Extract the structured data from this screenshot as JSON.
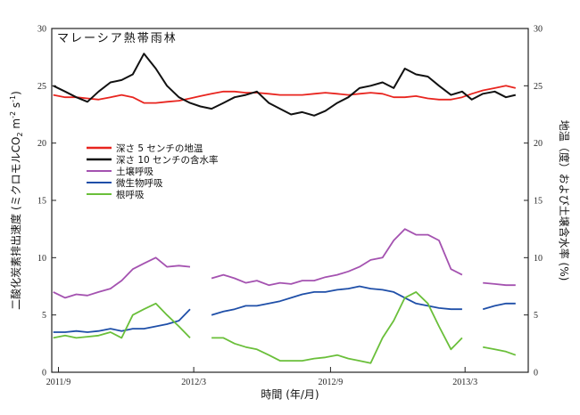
{
  "chart_data": {
    "type": "line",
    "title": "マレーシア熱帯雨林",
    "xlabel": "時間 (年/月)",
    "ylabel_parts": [
      "二酸化炭素排出速度 (ミクロモルCO",
      "2",
      " m",
      "-2",
      " s",
      "-1",
      ")"
    ],
    "y2label": "地温（度）および土壌含水率 (%)",
    "xlim": [
      "2011-08-23",
      "2013-05-25"
    ],
    "ylim": [
      0,
      30
    ],
    "y2lim": [
      0,
      30
    ],
    "yticks": [
      0,
      5,
      10,
      15,
      20,
      25,
      30
    ],
    "y2ticks": [
      0,
      5,
      10,
      15,
      20,
      25,
      30
    ],
    "xticks": [
      {
        "date": "2011-09-01",
        "label": "2011/9"
      },
      {
        "date": "2012-03-01",
        "label": "2012/3"
      },
      {
        "date": "2012-09-01",
        "label": "2012/9"
      },
      {
        "date": "2013-03-01",
        "label": "2013/3"
      }
    ],
    "grid": false,
    "legend_position": "center-left",
    "x": [
      "2011-08-25",
      "2011-09-10",
      "2011-09-25",
      "2011-10-10",
      "2011-10-25",
      "2011-11-10",
      "2011-11-25",
      "2011-12-10",
      "2011-12-25",
      "2012-01-10",
      "2012-01-25",
      "2012-02-10",
      "2012-02-25",
      "2012-03-10",
      "2012-03-25",
      "2012-04-10",
      "2012-04-25",
      "2012-05-10",
      "2012-05-25",
      "2012-06-10",
      "2012-06-25",
      "2012-07-10",
      "2012-07-25",
      "2012-08-10",
      "2012-08-25",
      "2012-09-10",
      "2012-09-25",
      "2012-10-10",
      "2012-10-25",
      "2012-11-10",
      "2012-11-25",
      "2012-12-10",
      "2012-12-25",
      "2013-01-10",
      "2013-01-25",
      "2013-02-10",
      "2013-02-25",
      "2013-03-10",
      "2013-03-25",
      "2013-04-10",
      "2013-04-25",
      "2013-05-08"
    ],
    "series": [
      {
        "name": "深さ 5 センチの地温",
        "axis": "right",
        "color": "#e8251f",
        "values": [
          24.2,
          24.0,
          24.0,
          23.9,
          23.8,
          24.0,
          24.2,
          24.0,
          23.5,
          23.5,
          23.6,
          23.7,
          23.9,
          24.1,
          24.3,
          24.5,
          24.5,
          24.4,
          24.4,
          24.3,
          24.2,
          24.2,
          24.2,
          24.3,
          24.4,
          24.3,
          24.2,
          24.3,
          24.4,
          24.3,
          24.0,
          24.0,
          24.1,
          23.9,
          23.8,
          23.8,
          24.0,
          24.3,
          24.6,
          24.8,
          25.0,
          24.8
        ]
      },
      {
        "name": "深さ 10 センチの含水率",
        "axis": "right",
        "color": "#111111",
        "values": [
          25.0,
          24.5,
          24.0,
          23.6,
          24.5,
          25.3,
          25.5,
          26.0,
          27.8,
          26.5,
          25.0,
          24.0,
          23.5,
          23.2,
          23.0,
          23.5,
          24.0,
          24.2,
          24.5,
          23.5,
          23.0,
          22.5,
          22.7,
          22.4,
          22.8,
          23.5,
          24.0,
          24.8,
          25.0,
          25.3,
          24.8,
          26.5,
          26.0,
          25.8,
          25.0,
          24.2,
          24.5,
          23.8,
          24.3,
          24.5,
          24.0,
          24.2
        ]
      },
      {
        "name": "土壌呼吸",
        "axis": "left",
        "color": "#a452b0",
        "values": [
          7.0,
          6.5,
          6.8,
          6.7,
          7.0,
          7.3,
          8.0,
          9.0,
          9.5,
          10.0,
          9.2,
          9.3,
          9.2,
          null,
          8.2,
          8.5,
          8.2,
          7.8,
          8.0,
          7.6,
          7.8,
          7.7,
          8.0,
          8.0,
          8.3,
          8.5,
          8.8,
          9.2,
          9.8,
          10.0,
          11.5,
          12.5,
          12.0,
          12.0,
          11.5,
          9.0,
          8.5,
          null,
          7.8,
          7.7,
          7.6,
          7.6
        ]
      },
      {
        "name": "微生物呼吸",
        "axis": "left",
        "color": "#1f4fa8",
        "values": [
          3.5,
          3.5,
          3.6,
          3.5,
          3.6,
          3.8,
          3.6,
          3.8,
          3.8,
          4.0,
          4.2,
          4.5,
          5.5,
          null,
          5.0,
          5.3,
          5.5,
          5.8,
          5.8,
          6.0,
          6.2,
          6.5,
          6.8,
          7.0,
          7.0,
          7.2,
          7.3,
          7.5,
          7.3,
          7.2,
          7.0,
          6.5,
          6.0,
          5.8,
          5.6,
          5.5,
          5.5,
          null,
          5.5,
          5.8,
          6.0,
          6.0
        ]
      },
      {
        "name": "根呼吸",
        "axis": "left",
        "color": "#6abf3a",
        "values": [
          3.0,
          3.2,
          3.0,
          3.1,
          3.2,
          3.5,
          3.0,
          5.0,
          5.5,
          6.0,
          5.0,
          4.0,
          3.0,
          null,
          3.0,
          3.0,
          2.5,
          2.2,
          2.0,
          1.5,
          1.0,
          1.0,
          1.0,
          1.2,
          1.3,
          1.5,
          1.2,
          1.0,
          0.8,
          3.0,
          4.5,
          6.5,
          7.0,
          6.0,
          4.0,
          2.0,
          3.0,
          null,
          2.2,
          2.0,
          1.8,
          1.5
        ]
      }
    ]
  }
}
